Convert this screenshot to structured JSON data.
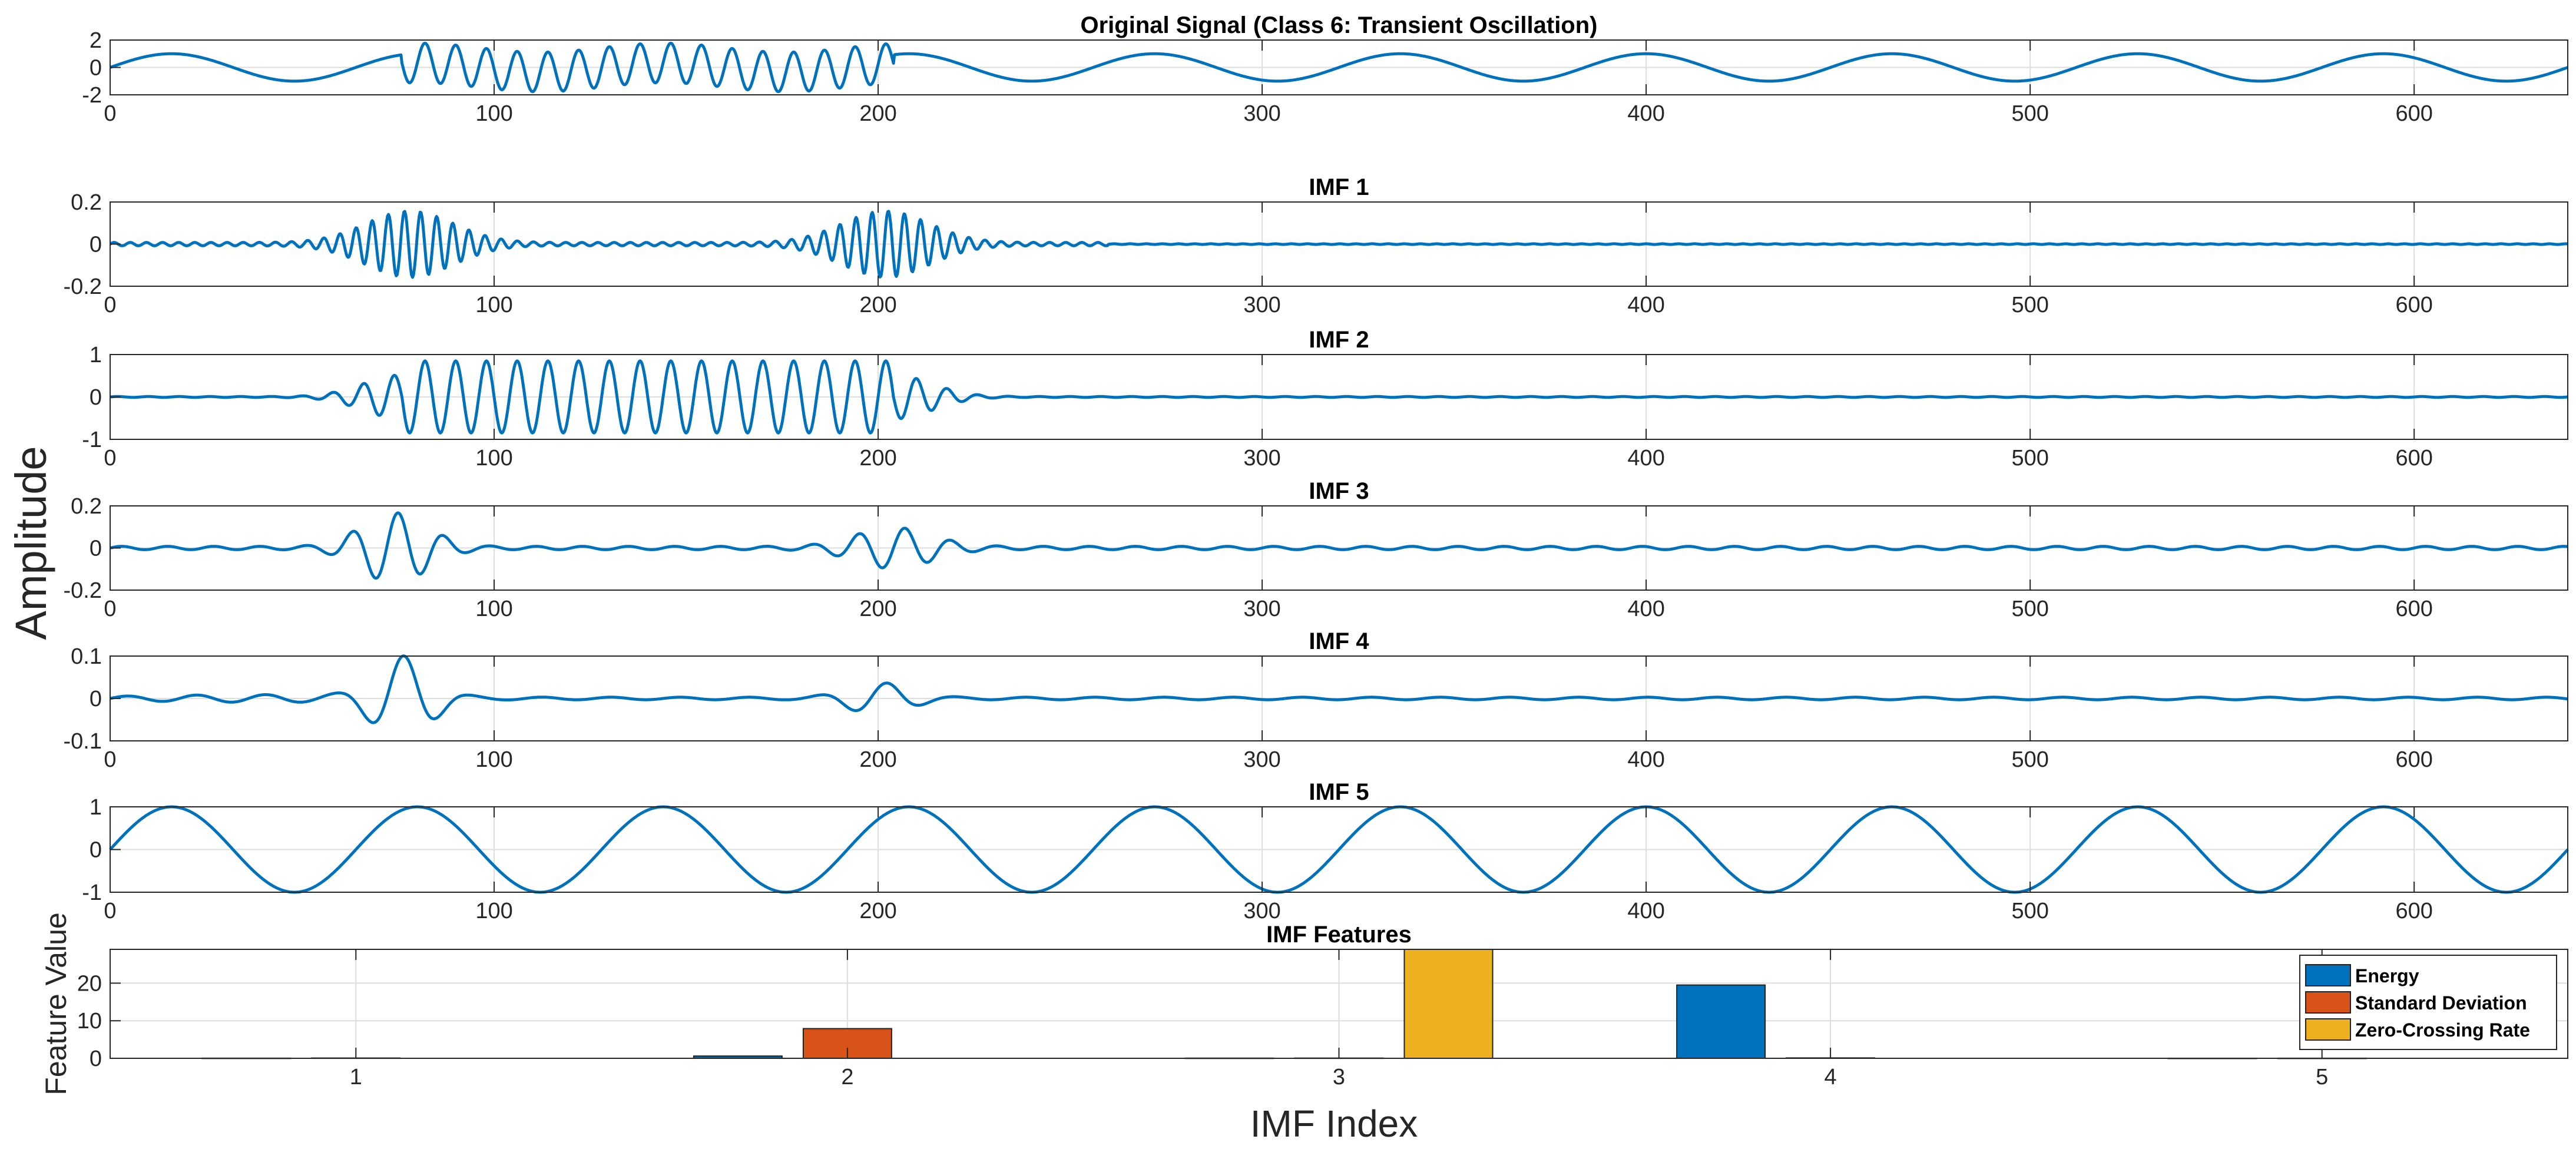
{
  "figure": {
    "ylabel": "Amplitude",
    "bottom_xlabel": "IMF Index"
  },
  "chart_data": [
    {
      "type": "line",
      "title": "Original Signal (Class 6: Transient Oscillation)",
      "xlim": [
        0,
        640
      ],
      "ylim": [
        -2,
        2
      ],
      "xticks": [
        0,
        100,
        200,
        300,
        400,
        500,
        600
      ],
      "yticks": [
        -2,
        0,
        2
      ],
      "grid": true,
      "signal": "sine period 64 amplitude 1, with transient bursts amplitude ~1.7 (period ~8) over x 76-204",
      "series": [
        {
          "color": "#0072BD"
        }
      ]
    },
    {
      "type": "line",
      "title": "IMF 1",
      "xlim": [
        0,
        640
      ],
      "ylim": [
        -0.2,
        0.2
      ],
      "xticks": [
        0,
        100,
        200,
        300,
        400,
        500,
        600
      ],
      "yticks": [
        -0.2,
        0,
        0.2
      ],
      "grid": true,
      "signal": "high-frequency bursts peaking ~0.15 near x 76 and x 204",
      "series": [
        {
          "color": "#0072BD"
        }
      ]
    },
    {
      "type": "line",
      "title": "IMF 2",
      "xlim": [
        0,
        640
      ],
      "ylim": [
        -1,
        1
      ],
      "xticks": [
        0,
        100,
        200,
        300,
        400,
        500,
        600
      ],
      "yticks": [
        -1,
        0,
        1
      ],
      "grid": true,
      "signal": "oscillation amplitude ~0.85 (period ~8) across x 76-204, near zero elsewhere",
      "series": [
        {
          "color": "#0072BD"
        }
      ]
    },
    {
      "type": "line",
      "title": "IMF 3",
      "xlim": [
        0,
        640
      ],
      "ylim": [
        -0.2,
        0.2
      ],
      "xticks": [
        0,
        100,
        200,
        300,
        400,
        500,
        600
      ],
      "yticks": [
        -0.2,
        0,
        0.2
      ],
      "grid": true,
      "signal": "bursts peaking ~0.16 near x 76 and ~0.09 near x 204",
      "series": [
        {
          "color": "#0072BD"
        }
      ]
    },
    {
      "type": "line",
      "title": "IMF 4",
      "xlim": [
        0,
        640
      ],
      "ylim": [
        -0.1,
        0.1
      ],
      "xticks": [
        0,
        100,
        200,
        300,
        400,
        500,
        600
      ],
      "yticks": [
        -0.1,
        0,
        0.1
      ],
      "grid": true,
      "signal": "bursts peaking ~0.095 near x 76 and ~0.03 near x 204",
      "series": [
        {
          "color": "#0072BD"
        }
      ]
    },
    {
      "type": "line",
      "title": "IMF 5",
      "xlim": [
        0,
        640
      ],
      "ylim": [
        -1,
        1
      ],
      "xticks": [
        0,
        100,
        200,
        300,
        400,
        500,
        600
      ],
      "yticks": [
        -1,
        0,
        1
      ],
      "grid": true,
      "signal": "sine period 64 amplitude 1",
      "series": [
        {
          "color": "#0072BD"
        }
      ]
    },
    {
      "type": "bar",
      "title": "IMF Features",
      "xlabel": "IMF Index",
      "ylabel": "Feature Value",
      "categories": [
        1,
        2,
        3,
        4,
        5
      ],
      "xlim": [
        0.5,
        5.5
      ],
      "ylim": [
        0,
        29
      ],
      "yticks": [
        0,
        10,
        20
      ],
      "grid": true,
      "legend_position": "top-right",
      "series": [
        {
          "name": "Energy",
          "color": "#0072BD",
          "values": [
            0.03,
            0.6,
            0.04,
            19.5,
            0.01
          ]
        },
        {
          "name": "Standard Deviation",
          "color": "#D95319",
          "values": [
            0.07,
            7.9,
            0.06,
            0.1,
            0.02
          ]
        },
        {
          "name": "Zero-Crossing Rate",
          "color": "#EDB120",
          "values": [
            0,
            0,
            29,
            0,
            0
          ]
        }
      ]
    }
  ]
}
